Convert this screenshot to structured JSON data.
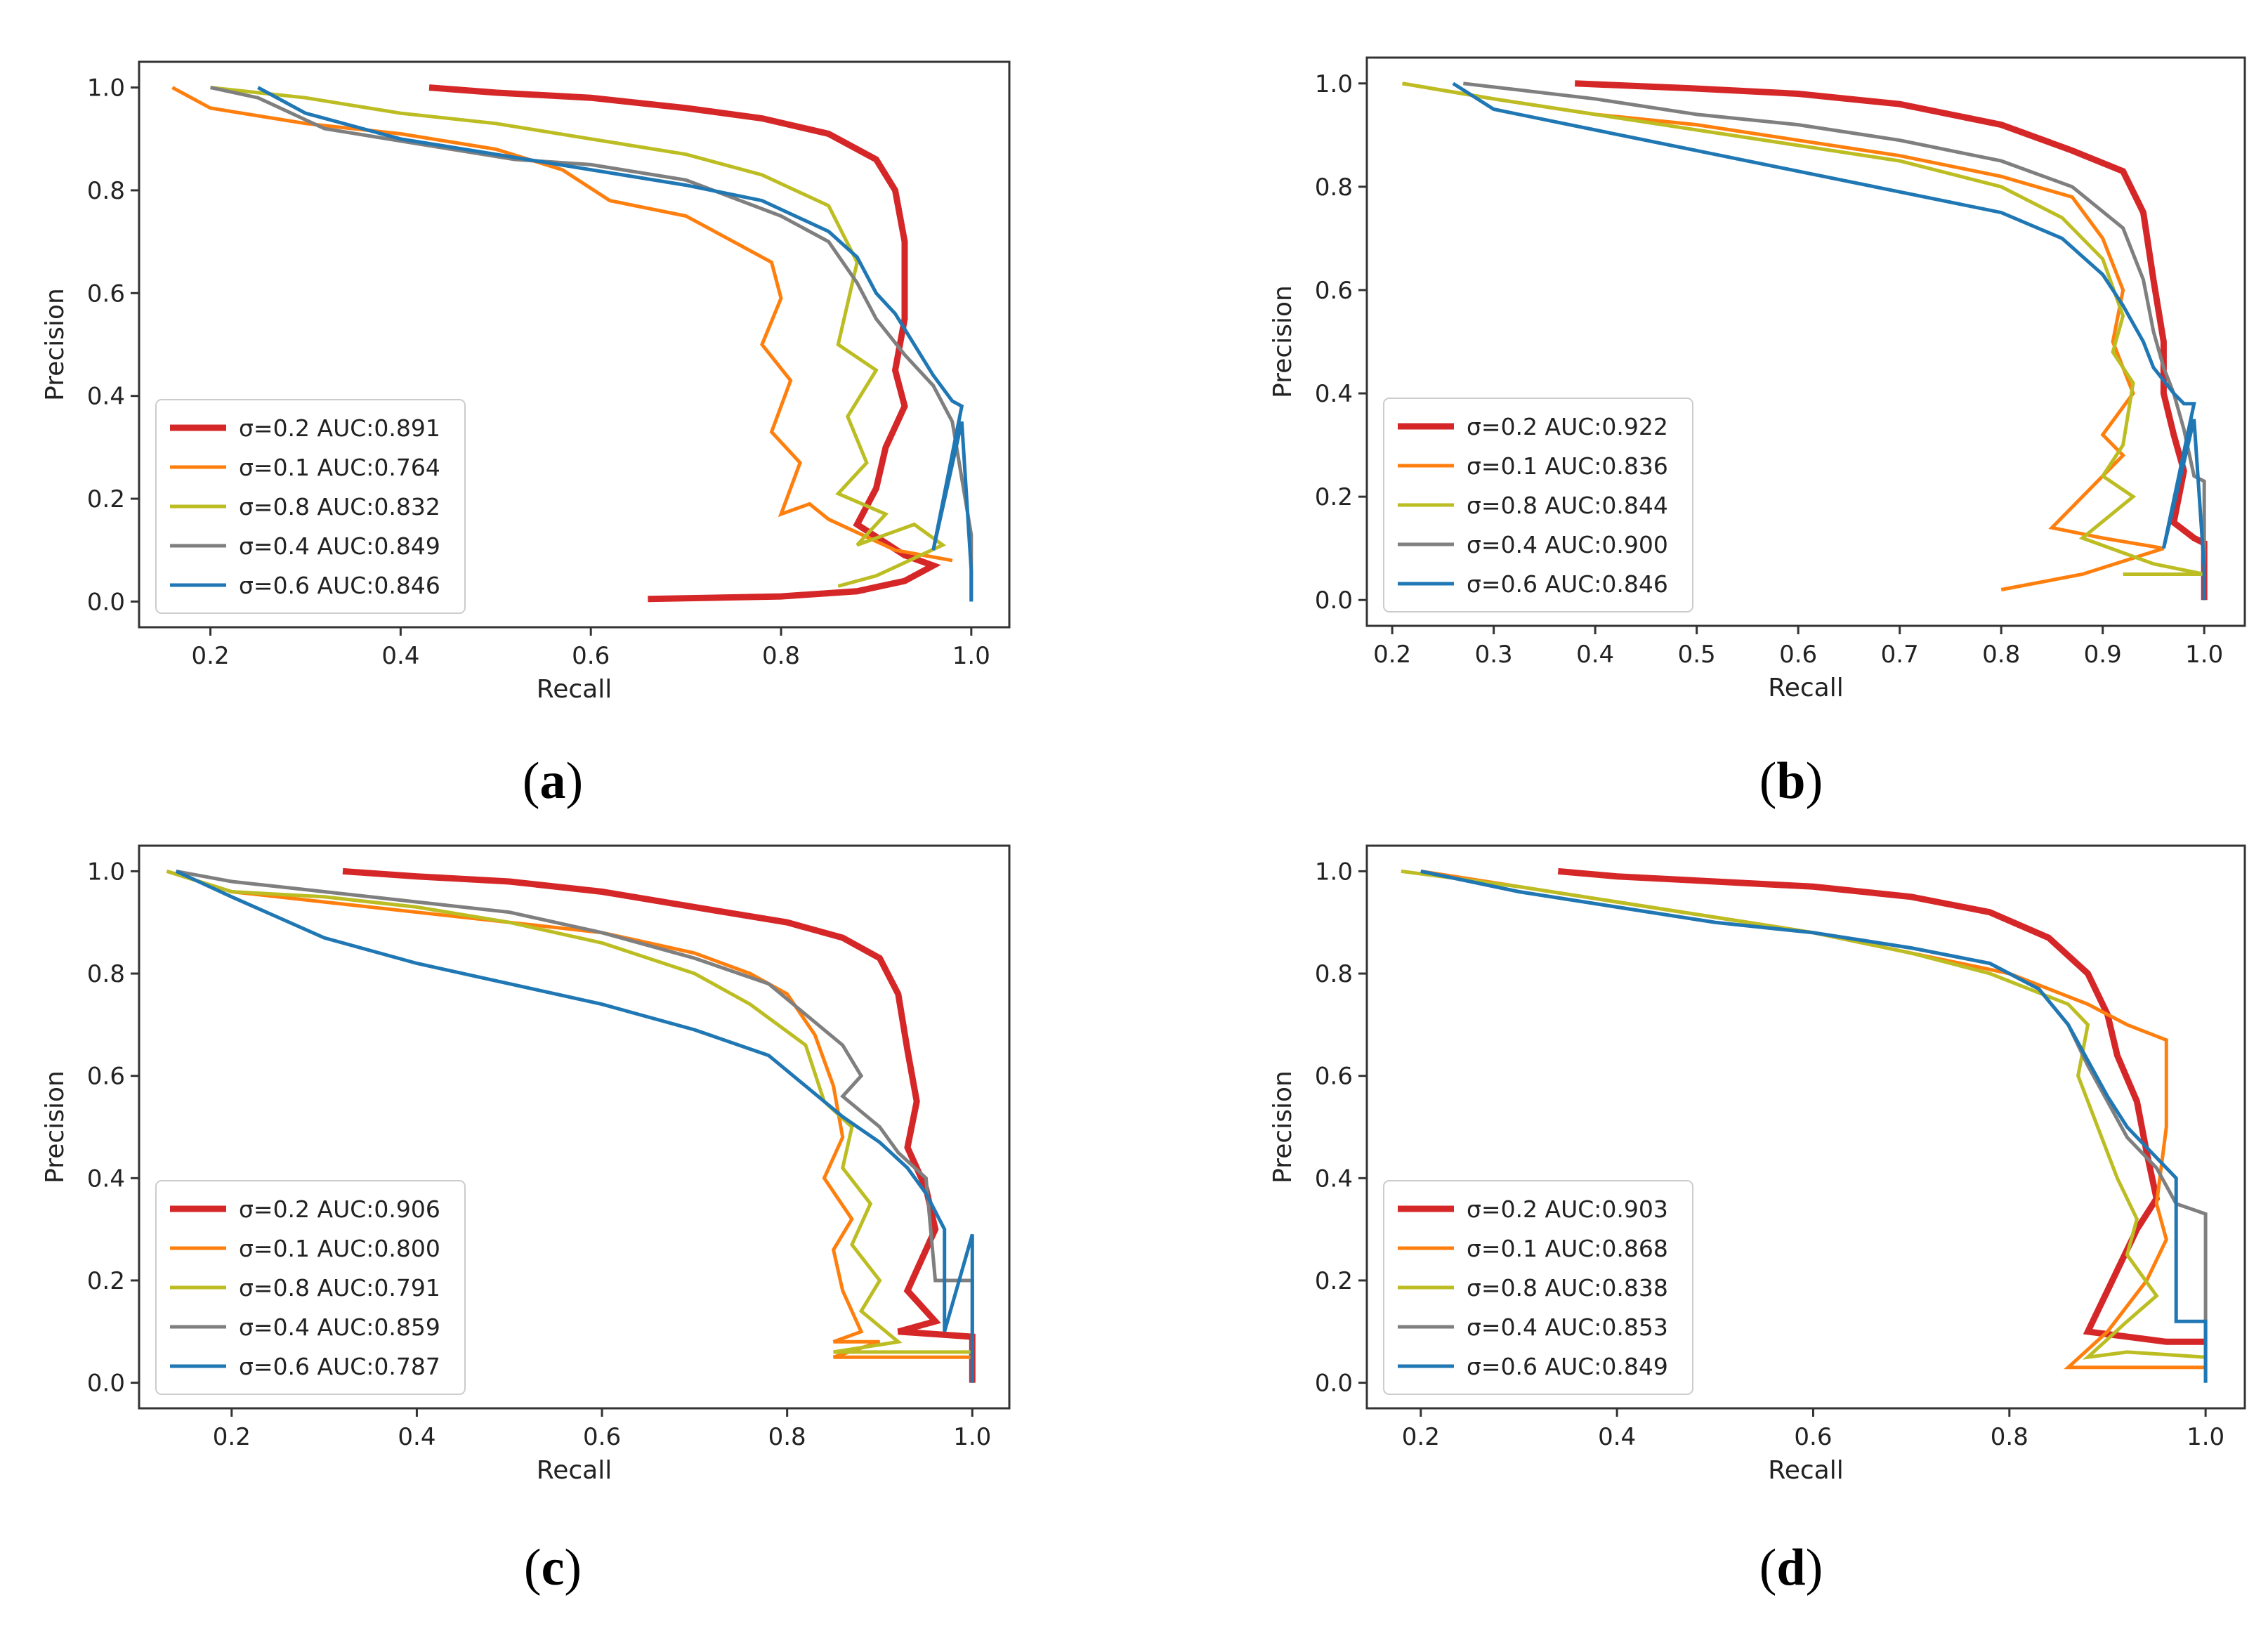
{
  "chart_data": [
    {
      "type": "line",
      "panel": "a",
      "caption": "a",
      "xlabel": "Recall",
      "ylabel": "Precision",
      "xlim": [
        0.125,
        1.04
      ],
      "ylim": [
        -0.05,
        1.05
      ],
      "xticks": [
        0.2,
        0.4,
        0.6,
        0.8,
        1.0
      ],
      "xtick_labels": [
        "0.2",
        "0.4",
        "0.6",
        "0.8",
        "1.0"
      ],
      "yticks": [
        0.0,
        0.2,
        0.4,
        0.6,
        0.8,
        1.0
      ],
      "ytick_labels": [
        "0.0",
        "0.2",
        "0.4",
        "0.6",
        "0.8",
        "1.0"
      ],
      "legend_position": "lower-left",
      "series": [
        {
          "name": "σ=0.2 AUC:0.891",
          "color": "#d62728",
          "bold": true,
          "x": [
            0.43,
            0.5,
            0.6,
            0.7,
            0.78,
            0.85,
            0.9,
            0.92,
            0.93,
            0.93,
            0.92,
            0.93,
            0.91,
            0.9,
            0.88,
            0.93,
            0.96,
            0.93,
            0.88,
            0.8,
            0.66
          ],
          "y": [
            1.0,
            0.99,
            0.98,
            0.96,
            0.94,
            0.91,
            0.86,
            0.8,
            0.7,
            0.55,
            0.45,
            0.38,
            0.3,
            0.22,
            0.15,
            0.09,
            0.07,
            0.04,
            0.02,
            0.01,
            0.005
          ]
        },
        {
          "name": "σ=0.1 AUC:0.764",
          "color": "#ff7f0e",
          "bold": false,
          "x": [
            0.16,
            0.2,
            0.3,
            0.4,
            0.5,
            0.57,
            0.62,
            0.7,
            0.75,
            0.79,
            0.8,
            0.78,
            0.81,
            0.79,
            0.82,
            0.8,
            0.83,
            0.85,
            0.92,
            0.98
          ],
          "y": [
            1.0,
            0.96,
            0.93,
            0.91,
            0.88,
            0.84,
            0.78,
            0.75,
            0.7,
            0.66,
            0.59,
            0.5,
            0.43,
            0.33,
            0.27,
            0.17,
            0.19,
            0.16,
            0.1,
            0.08
          ]
        },
        {
          "name": "σ=0.8 AUC:0.832",
          "color": "#bcbd22",
          "bold": false,
          "x": [
            0.2,
            0.3,
            0.4,
            0.5,
            0.6,
            0.7,
            0.78,
            0.85,
            0.88,
            0.86,
            0.9,
            0.87,
            0.89,
            0.86,
            0.91,
            0.88,
            0.94,
            0.97,
            0.9,
            0.86
          ],
          "y": [
            1.0,
            0.98,
            0.95,
            0.93,
            0.9,
            0.87,
            0.83,
            0.77,
            0.66,
            0.5,
            0.45,
            0.36,
            0.27,
            0.21,
            0.17,
            0.11,
            0.15,
            0.11,
            0.05,
            0.03
          ]
        },
        {
          "name": "σ=0.4 AUC:0.849",
          "color": "#7f7f7f",
          "bold": false,
          "x": [
            0.2,
            0.25,
            0.32,
            0.42,
            0.52,
            0.6,
            0.7,
            0.8,
            0.85,
            0.88,
            0.9,
            0.93,
            0.96,
            0.98,
            1.0,
            1.0
          ],
          "y": [
            1.0,
            0.98,
            0.92,
            0.89,
            0.86,
            0.85,
            0.82,
            0.75,
            0.7,
            0.62,
            0.55,
            0.48,
            0.42,
            0.35,
            0.13,
            0.0
          ]
        },
        {
          "name": "σ=0.6 AUC:0.846",
          "color": "#1f77b4",
          "bold": false,
          "x": [
            0.25,
            0.3,
            0.4,
            0.5,
            0.6,
            0.7,
            0.78,
            0.85,
            0.88,
            0.9,
            0.92,
            0.94,
            0.96,
            0.98,
            0.99,
            0.96,
            0.99,
            1.0,
            1.0
          ],
          "y": [
            1.0,
            0.95,
            0.9,
            0.87,
            0.84,
            0.81,
            0.78,
            0.72,
            0.67,
            0.6,
            0.56,
            0.5,
            0.44,
            0.39,
            0.38,
            0.1,
            0.35,
            0.06,
            0.0
          ]
        }
      ]
    },
    {
      "type": "line",
      "panel": "b",
      "caption": "b",
      "xlabel": "Recall",
      "ylabel": "Precision",
      "xlim": [
        0.175,
        1.04
      ],
      "ylim": [
        -0.05,
        1.05
      ],
      "xticks": [
        0.2,
        0.3,
        0.4,
        0.5,
        0.6,
        0.7,
        0.8,
        0.9,
        1.0
      ],
      "xtick_labels": [
        "0.2",
        "0.3",
        "0.4",
        "0.5",
        "0.6",
        "0.7",
        "0.8",
        "0.9",
        "1.0"
      ],
      "yticks": [
        0.0,
        0.2,
        0.4,
        0.6,
        0.8,
        1.0
      ],
      "ytick_labels": [
        "0.0",
        "0.2",
        "0.4",
        "0.6",
        "0.8",
        "1.0"
      ],
      "legend_position": "lower-left",
      "series": [
        {
          "name": "σ=0.2 AUC:0.922",
          "color": "#d62728",
          "bold": true,
          "x": [
            0.38,
            0.5,
            0.6,
            0.7,
            0.8,
            0.87,
            0.92,
            0.94,
            0.95,
            0.96,
            0.96,
            0.97,
            0.98,
            0.97,
            0.99,
            1.0,
            1.0
          ],
          "y": [
            1.0,
            0.99,
            0.98,
            0.96,
            0.92,
            0.87,
            0.83,
            0.75,
            0.62,
            0.5,
            0.4,
            0.32,
            0.25,
            0.15,
            0.12,
            0.11,
            0.0
          ]
        },
        {
          "name": "σ=0.1 AUC:0.836",
          "color": "#ff7f0e",
          "bold": false,
          "x": [
            0.21,
            0.3,
            0.4,
            0.5,
            0.6,
            0.7,
            0.8,
            0.87,
            0.9,
            0.92,
            0.91,
            0.93,
            0.9,
            0.92,
            0.85,
            0.9,
            0.96,
            0.88,
            0.8
          ],
          "y": [
            1.0,
            0.97,
            0.94,
            0.92,
            0.89,
            0.86,
            0.82,
            0.78,
            0.7,
            0.6,
            0.5,
            0.4,
            0.32,
            0.28,
            0.14,
            0.12,
            0.1,
            0.05,
            0.02
          ]
        },
        {
          "name": "σ=0.8 AUC:0.844",
          "color": "#bcbd22",
          "bold": false,
          "x": [
            0.21,
            0.3,
            0.4,
            0.5,
            0.6,
            0.7,
            0.8,
            0.86,
            0.9,
            0.92,
            0.91,
            0.93,
            0.92,
            0.9,
            0.93,
            0.88,
            0.95,
            1.0,
            0.92
          ],
          "y": [
            1.0,
            0.97,
            0.94,
            0.91,
            0.88,
            0.85,
            0.8,
            0.74,
            0.66,
            0.55,
            0.48,
            0.42,
            0.3,
            0.24,
            0.2,
            0.12,
            0.07,
            0.05,
            0.05
          ]
        },
        {
          "name": "σ=0.4 AUC:0.900",
          "color": "#7f7f7f",
          "bold": false,
          "x": [
            0.27,
            0.4,
            0.5,
            0.6,
            0.7,
            0.8,
            0.87,
            0.92,
            0.94,
            0.95,
            0.96,
            0.97,
            0.98,
            0.99,
            1.0,
            1.0
          ],
          "y": [
            1.0,
            0.97,
            0.94,
            0.92,
            0.89,
            0.85,
            0.8,
            0.72,
            0.62,
            0.52,
            0.45,
            0.4,
            0.33,
            0.24,
            0.23,
            0.0
          ]
        },
        {
          "name": "σ=0.6 AUC:0.846",
          "color": "#1f77b4",
          "bold": false,
          "x": [
            0.26,
            0.3,
            0.4,
            0.5,
            0.6,
            0.7,
            0.8,
            0.86,
            0.9,
            0.92,
            0.94,
            0.95,
            0.97,
            0.98,
            0.99,
            0.96,
            0.99,
            1.0,
            1.0
          ],
          "y": [
            1.0,
            0.95,
            0.91,
            0.87,
            0.83,
            0.79,
            0.75,
            0.7,
            0.63,
            0.57,
            0.5,
            0.45,
            0.4,
            0.38,
            0.38,
            0.1,
            0.35,
            0.06,
            0.0
          ]
        }
      ]
    },
    {
      "type": "line",
      "panel": "c",
      "caption": "c",
      "xlabel": "Recall",
      "ylabel": "Precision",
      "xlim": [
        0.1,
        1.04
      ],
      "ylim": [
        -0.05,
        1.05
      ],
      "xticks": [
        0.2,
        0.4,
        0.6,
        0.8,
        1.0
      ],
      "xtick_labels": [
        "0.2",
        "0.4",
        "0.6",
        "0.8",
        "1.0"
      ],
      "yticks": [
        0.0,
        0.2,
        0.4,
        0.6,
        0.8,
        1.0
      ],
      "ytick_labels": [
        "0.0",
        "0.2",
        "0.4",
        "0.6",
        "0.8",
        "1.0"
      ],
      "legend_position": "lower-left",
      "series": [
        {
          "name": "σ=0.2 AUC:0.906",
          "color": "#d62728",
          "bold": true,
          "x": [
            0.32,
            0.4,
            0.5,
            0.6,
            0.7,
            0.8,
            0.86,
            0.9,
            0.92,
            0.93,
            0.94,
            0.93,
            0.95,
            0.96,
            0.94,
            0.93,
            0.96,
            0.92,
            1.0,
            1.0
          ],
          "y": [
            1.0,
            0.99,
            0.98,
            0.96,
            0.93,
            0.9,
            0.87,
            0.83,
            0.76,
            0.65,
            0.55,
            0.46,
            0.38,
            0.3,
            0.22,
            0.18,
            0.12,
            0.1,
            0.09,
            0.0
          ]
        },
        {
          "name": "σ=0.1 AUC:0.800",
          "color": "#ff7f0e",
          "bold": false,
          "x": [
            0.13,
            0.2,
            0.3,
            0.4,
            0.5,
            0.6,
            0.7,
            0.76,
            0.8,
            0.83,
            0.85,
            0.86,
            0.84,
            0.87,
            0.85,
            0.86,
            0.88,
            0.85,
            0.9,
            0.85,
            1.0
          ],
          "y": [
            1.0,
            0.96,
            0.94,
            0.92,
            0.9,
            0.88,
            0.84,
            0.8,
            0.76,
            0.68,
            0.58,
            0.48,
            0.4,
            0.32,
            0.26,
            0.18,
            0.1,
            0.08,
            0.08,
            0.05,
            0.05
          ]
        },
        {
          "name": "σ=0.8 AUC:0.791",
          "color": "#bcbd22",
          "bold": false,
          "x": [
            0.13,
            0.2,
            0.3,
            0.4,
            0.5,
            0.6,
            0.7,
            0.76,
            0.82,
            0.84,
            0.87,
            0.86,
            0.89,
            0.87,
            0.9,
            0.88,
            0.92,
            0.85,
            1.0
          ],
          "y": [
            1.0,
            0.96,
            0.95,
            0.93,
            0.9,
            0.86,
            0.8,
            0.74,
            0.66,
            0.55,
            0.5,
            0.42,
            0.35,
            0.27,
            0.2,
            0.14,
            0.08,
            0.06,
            0.06
          ]
        },
        {
          "name": "σ=0.4 AUC:0.859",
          "color": "#7f7f7f",
          "bold": false,
          "x": [
            0.14,
            0.2,
            0.3,
            0.4,
            0.5,
            0.6,
            0.7,
            0.78,
            0.82,
            0.86,
            0.88,
            0.86,
            0.9,
            0.92,
            0.95,
            0.96,
            1.0,
            1.0
          ],
          "y": [
            1.0,
            0.98,
            0.96,
            0.94,
            0.92,
            0.88,
            0.83,
            0.78,
            0.72,
            0.66,
            0.6,
            0.56,
            0.5,
            0.45,
            0.4,
            0.2,
            0.2,
            0.0
          ]
        },
        {
          "name": "σ=0.6 AUC:0.787",
          "color": "#1f77b4",
          "bold": false,
          "x": [
            0.14,
            0.2,
            0.3,
            0.4,
            0.5,
            0.6,
            0.7,
            0.78,
            0.82,
            0.86,
            0.9,
            0.93,
            0.95,
            0.97,
            0.97,
            1.0,
            1.0
          ],
          "y": [
            1.0,
            0.95,
            0.87,
            0.82,
            0.78,
            0.74,
            0.69,
            0.64,
            0.58,
            0.52,
            0.47,
            0.42,
            0.37,
            0.3,
            0.1,
            0.29,
            0.0
          ]
        }
      ]
    },
    {
      "type": "line",
      "panel": "d",
      "caption": "d",
      "xlabel": "Recall",
      "ylabel": "Precision",
      "xlim": [
        0.145,
        1.04
      ],
      "ylim": [
        -0.05,
        1.05
      ],
      "xticks": [
        0.2,
        0.4,
        0.6,
        0.8,
        1.0
      ],
      "xtick_labels": [
        "0.2",
        "0.4",
        "0.6",
        "0.8",
        "1.0"
      ],
      "yticks": [
        0.0,
        0.2,
        0.4,
        0.6,
        0.8,
        1.0
      ],
      "ytick_labels": [
        "0.0",
        "0.2",
        "0.4",
        "0.6",
        "0.8",
        "1.0"
      ],
      "legend_position": "lower-left",
      "series": [
        {
          "name": "σ=0.2 AUC:0.903",
          "color": "#d62728",
          "bold": true,
          "x": [
            0.34,
            0.4,
            0.5,
            0.6,
            0.7,
            0.78,
            0.84,
            0.88,
            0.9,
            0.91,
            0.93,
            0.94,
            0.95,
            0.93,
            0.91,
            0.9,
            0.88,
            0.96,
            1.0
          ],
          "y": [
            1.0,
            0.99,
            0.98,
            0.97,
            0.95,
            0.92,
            0.87,
            0.8,
            0.72,
            0.64,
            0.55,
            0.45,
            0.36,
            0.3,
            0.22,
            0.18,
            0.1,
            0.08,
            0.08
          ]
        },
        {
          "name": "σ=0.1 AUC:0.868",
          "color": "#ff7f0e",
          "bold": false,
          "x": [
            0.2,
            0.3,
            0.4,
            0.5,
            0.6,
            0.7,
            0.8,
            0.88,
            0.92,
            0.96,
            0.96,
            0.95,
            0.96,
            0.94,
            0.9,
            0.86,
            1.0
          ],
          "y": [
            1.0,
            0.97,
            0.94,
            0.91,
            0.88,
            0.84,
            0.8,
            0.74,
            0.7,
            0.67,
            0.5,
            0.35,
            0.28,
            0.2,
            0.1,
            0.03,
            0.03
          ]
        },
        {
          "name": "σ=0.8 AUC:0.838",
          "color": "#bcbd22",
          "bold": false,
          "x": [
            0.18,
            0.3,
            0.4,
            0.5,
            0.6,
            0.7,
            0.78,
            0.82,
            0.86,
            0.88,
            0.87,
            0.89,
            0.91,
            0.93,
            0.92,
            0.95,
            0.92,
            0.88,
            0.92,
            1.0
          ],
          "y": [
            1.0,
            0.97,
            0.94,
            0.91,
            0.88,
            0.84,
            0.8,
            0.77,
            0.74,
            0.7,
            0.6,
            0.5,
            0.4,
            0.32,
            0.25,
            0.17,
            0.12,
            0.05,
            0.06,
            0.05
          ]
        },
        {
          "name": "σ=0.4 AUC:0.853",
          "color": "#7f7f7f",
          "bold": false,
          "x": [
            0.2,
            0.3,
            0.4,
            0.5,
            0.6,
            0.7,
            0.78,
            0.83,
            0.86,
            0.88,
            0.9,
            0.92,
            0.95,
            0.97,
            1.0,
            1.0
          ],
          "y": [
            1.0,
            0.96,
            0.93,
            0.9,
            0.88,
            0.85,
            0.82,
            0.77,
            0.7,
            0.62,
            0.55,
            0.48,
            0.42,
            0.35,
            0.33,
            0.0
          ]
        },
        {
          "name": "σ=0.6 AUC:0.849",
          "color": "#1f77b4",
          "bold": false,
          "x": [
            0.2,
            0.3,
            0.4,
            0.5,
            0.6,
            0.7,
            0.78,
            0.83,
            0.86,
            0.88,
            0.9,
            0.92,
            0.95,
            0.97,
            0.97,
            1.0,
            1.0
          ],
          "y": [
            1.0,
            0.96,
            0.93,
            0.9,
            0.88,
            0.85,
            0.82,
            0.77,
            0.7,
            0.63,
            0.56,
            0.5,
            0.44,
            0.4,
            0.12,
            0.12,
            0.0
          ]
        }
      ]
    }
  ]
}
